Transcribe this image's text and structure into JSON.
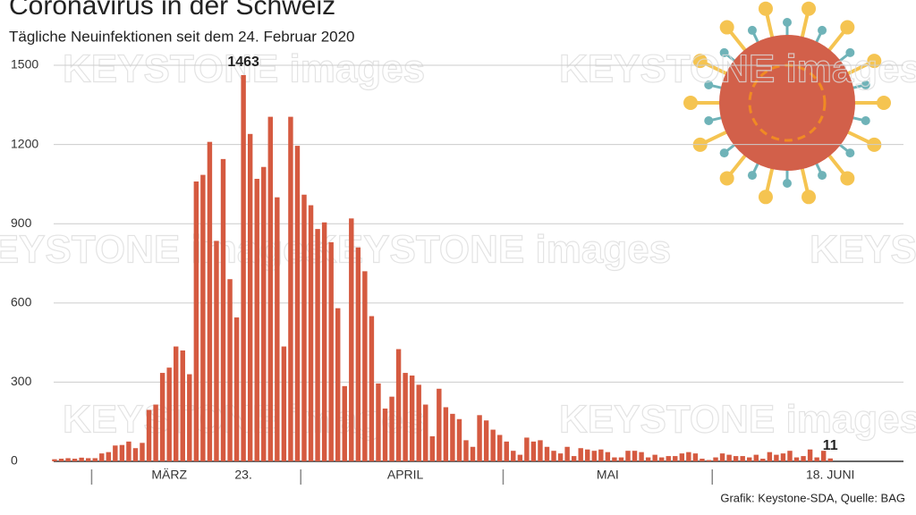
{
  "chart_data": {
    "type": "bar",
    "title": "Coronavirus in der Schweiz",
    "subtitle": "Tägliche Neuinfektionen seit dem 24. Februar 2020",
    "source": "Grafik: Keystone-SDA, Quelle: BAG",
    "watermark": "KEYSTONE images",
    "color": "#d55a40",
    "grid": true,
    "ylim": [
      0,
      1600
    ],
    "yticks": [
      0,
      300,
      600,
      900,
      1200,
      1500
    ],
    "categories": [
      null,
      null,
      null,
      null,
      null,
      null,
      null,
      null,
      null,
      null,
      null,
      null,
      null,
      null,
      null,
      null,
      null,
      "MÄRZ",
      null,
      null,
      null,
      null,
      null,
      null,
      null,
      null,
      null,
      null,
      "23.",
      null,
      null,
      null,
      null,
      null,
      null,
      null,
      null,
      null,
      null,
      null,
      null,
      null,
      null,
      null,
      null,
      null,
      null,
      null,
      null,
      null,
      null,
      null,
      "APRIL",
      null,
      null,
      null,
      null,
      null,
      null,
      null,
      null,
      null,
      null,
      null,
      null,
      null,
      null,
      null,
      null,
      null,
      null,
      null,
      null,
      null,
      null,
      null,
      null,
      null,
      null,
      null,
      null,
      null,
      "MAI",
      null,
      null,
      null,
      null,
      null,
      null,
      null,
      null,
      null,
      null,
      null,
      null,
      null,
      null,
      null,
      null,
      null,
      null,
      null,
      null,
      null,
      null,
      null,
      null,
      null,
      null,
      null,
      null,
      null,
      null,
      null,
      null,
      "18. JUNI"
    ],
    "values": [
      8,
      10,
      12,
      10,
      14,
      12,
      12,
      30,
      35,
      60,
      62,
      75,
      50,
      70,
      195,
      215,
      335,
      355,
      435,
      420,
      330,
      1060,
      1085,
      1210,
      835,
      1145,
      690,
      545,
      1463,
      1240,
      1070,
      1115,
      1305,
      1000,
      435,
      1305,
      1195,
      1010,
      970,
      880,
      905,
      830,
      580,
      285,
      920,
      810,
      720,
      550,
      295,
      200,
      245,
      425,
      335,
      325,
      290,
      215,
      95,
      275,
      205,
      180,
      160,
      80,
      55,
      175,
      155,
      120,
      100,
      75,
      40,
      25,
      90,
      75,
      80,
      55,
      40,
      30,
      55,
      20,
      50,
      45,
      40,
      45,
      35,
      15,
      15,
      40,
      40,
      35,
      15,
      25,
      15,
      20,
      20,
      30,
      35,
      30,
      10,
      5,
      15,
      30,
      25,
      20,
      20,
      15,
      25,
      10,
      35,
      25,
      30,
      40,
      15,
      20,
      45,
      15,
      40,
      11
    ]
  }
}
